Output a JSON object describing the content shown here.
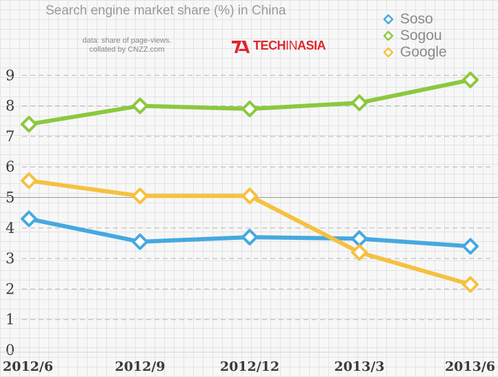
{
  "chart_data": {
    "type": "line",
    "title": "Search engine market share (%) in China",
    "note": [
      "data: share of page-views.",
      "collated by CNZZ.com"
    ],
    "brand": {
      "part1": "TECH",
      "part2": "IN",
      "part3": "ASIA",
      "color": "#e0252c"
    },
    "categories": [
      "2012/6",
      "2012/9",
      "2012/12",
      "2013/3",
      "2013/6"
    ],
    "ylim": [
      0,
      9
    ],
    "yticks": [
      "0",
      "1",
      "2",
      "3",
      "4",
      "5",
      "6",
      "7",
      "8",
      "9"
    ],
    "grid": true,
    "legend_position": "top-right",
    "series": [
      {
        "name": "Soso",
        "color": "#45a9e0",
        "values": [
          4.3,
          3.55,
          3.7,
          3.65,
          3.4
        ]
      },
      {
        "name": "Sogou",
        "color": "#8cc83f",
        "values": [
          7.4,
          8.0,
          7.9,
          8.1,
          8.85
        ]
      },
      {
        "name": "Google",
        "color": "#f5c13f",
        "values": [
          5.55,
          5.05,
          5.05,
          3.2,
          2.15
        ]
      }
    ]
  }
}
